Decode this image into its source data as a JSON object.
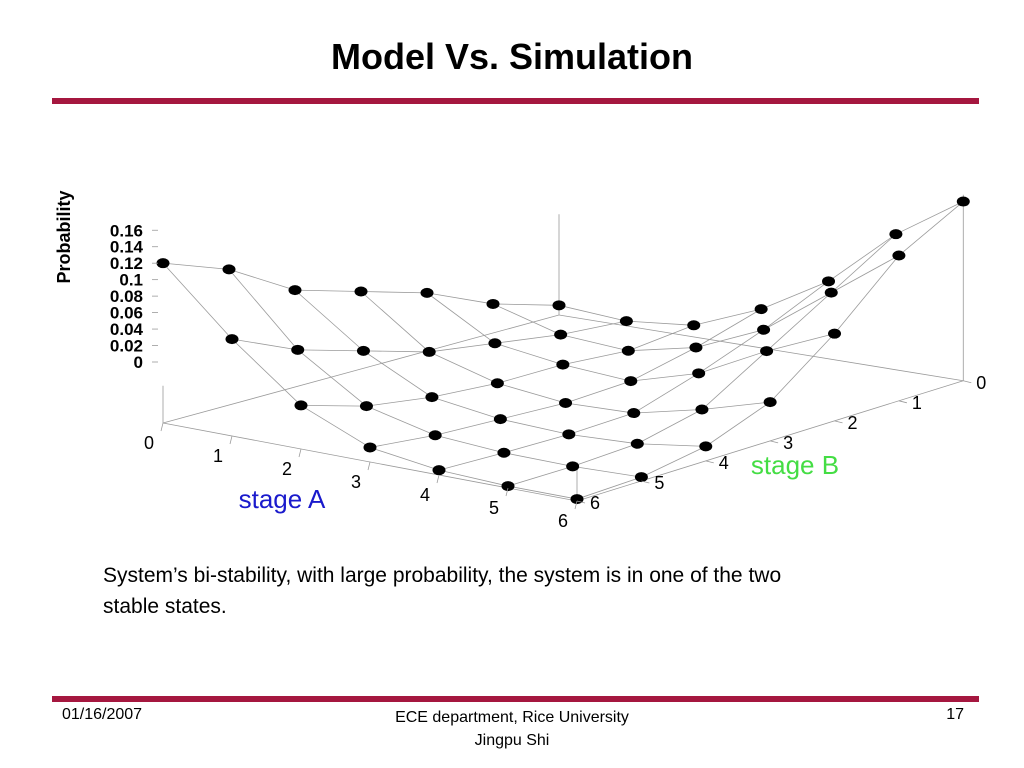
{
  "slide": {
    "title": "Model Vs. Simulation",
    "caption": "System’s bi-stability, with large probability, the system is in one of the two stable states.",
    "rule_color": "#a5173f"
  },
  "footer": {
    "date": "01/16/2007",
    "center_line1": "ECE department, Rice University",
    "center_line2": "Jingpu Shi",
    "page": "17"
  },
  "chart_data": {
    "type": "scatter",
    "subtype": "3d-surface-wireframe",
    "title": "",
    "xlabel": "stage A",
    "ylabel": "stage B",
    "zlabel": "Probability",
    "x_ticks": [
      "0",
      "1",
      "2",
      "3",
      "4",
      "5",
      "6"
    ],
    "y_ticks": [
      "0",
      "1",
      "2",
      "3",
      "4",
      "5",
      "6"
    ],
    "z_ticks": [
      "0",
      "0.02",
      "0.04",
      "0.06",
      "0.08",
      "0.1",
      "0.12",
      "0.14",
      "0.16"
    ],
    "zlim": [
      0,
      0.16
    ],
    "xlabel_color": "#1a1acc",
    "ylabel_color": "#44dd44",
    "grid": false,
    "z_values_rows_by_stageB": [
      [
        0.165,
        0.1,
        0.045,
        0.015,
        0.005,
        0.002,
        0.002
      ],
      [
        0.14,
        0.07,
        0.025,
        0.008,
        0.003,
        0.002,
        0.004
      ],
      [
        0.1,
        0.05,
        0.015,
        0.005,
        0.002,
        0.005,
        0.015
      ],
      [
        0.08,
        0.03,
        0.01,
        0.002,
        0.004,
        0.02,
        0.04
      ],
      [
        0.06,
        0.02,
        0.01,
        0.005,
        0.025,
        0.06,
        0.09
      ],
      [
        0.03,
        0.01,
        0.005,
        0.02,
        0.05,
        0.1,
        0.15
      ],
      [
        0.01,
        0.005,
        0.012,
        0.04,
        0.08,
        0.14,
        0.185
      ]
    ]
  }
}
